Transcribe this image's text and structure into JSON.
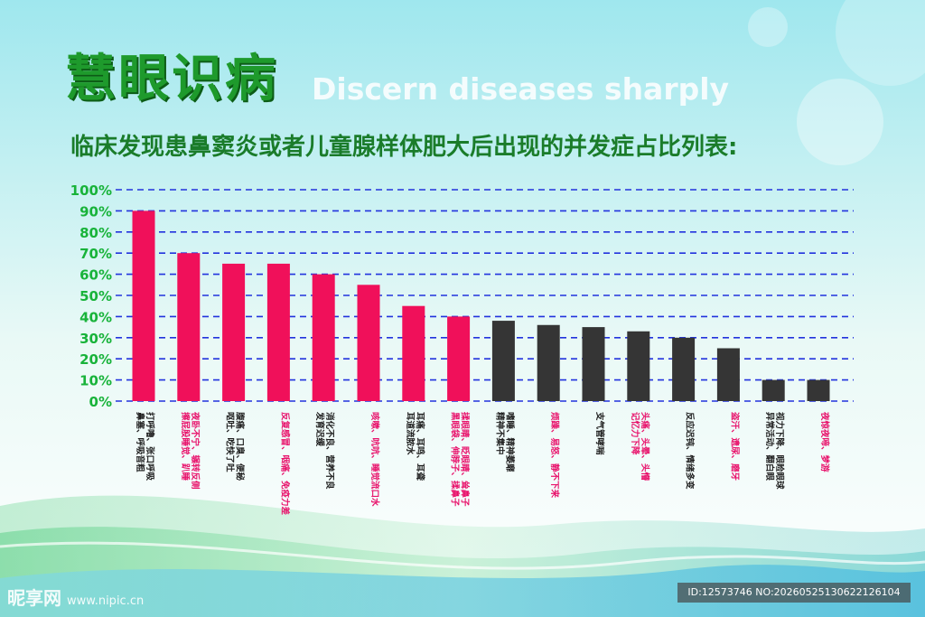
{
  "header": {
    "title_cn": "慧眼识病",
    "title_en": "Discern diseases sharply",
    "subtitle": "临床发现患鼻窦炎或者儿童腺样体肥大后出现的并发症占比列表:"
  },
  "colors": {
    "title": "#1e9a2c",
    "subtitle": "#1a7c2a",
    "axis_label": "#18b33a",
    "grid": "#2233dd",
    "bar_pink": "#f0105a",
    "bar_dark": "#353535",
    "label_pink": "#e8106a",
    "label_dark": "#1e1e1e"
  },
  "chart_data": {
    "type": "bar",
    "title": "",
    "xlabel": "",
    "ylabel": "",
    "ylim": [
      0,
      100
    ],
    "yticks": [
      0,
      10,
      20,
      30,
      40,
      50,
      60,
      70,
      80,
      90,
      100
    ],
    "ytick_labels": [
      "0%",
      "10%",
      "20%",
      "30%",
      "40%",
      "50%",
      "60%",
      "70%",
      "80%",
      "90%",
      "100%"
    ],
    "grid": true,
    "categories": [
      [
        "打呼噜、张口呼吸",
        "鼻塞、呼吸音粗"
      ],
      [
        "夜卧不宁、辗转反侧",
        "擦屁股睡觉、趴睡"
      ],
      [
        "腹痛、口臭、便秘",
        "呕吐、吃快了吐"
      ],
      [
        "反复感冒、咽痛、免疫力差"
      ],
      [
        "消化不良、营养不良",
        "发育迟缓"
      ],
      [
        "咳嗽、吭吭、睡觉流口水"
      ],
      [
        "耳痛、耳鸣、耳聋",
        "耳道流脓水"
      ],
      [
        "揉眼睛、眨眼睛、耸鼻子",
        "黑眼袋、伸脖子、揉鼻子"
      ],
      [
        "嗜睡、精神萎靡",
        "精神不集中"
      ],
      [
        "烦躁、易怒、静不下来"
      ],
      [
        "支气管哮喘"
      ],
      [
        "头痛、头晕、头懵",
        "记忆力下降"
      ],
      [
        "反应迟钝、情绪多变"
      ],
      [
        "盗汗、遗尿、磨牙"
      ],
      [
        "视力下降、眼睑眼球",
        "异常活动、翻白眼"
      ],
      [
        "夜惊夜啼、梦游"
      ]
    ],
    "values": [
      90,
      70,
      65,
      65,
      60,
      55,
      45,
      40,
      38,
      36,
      35,
      33,
      30,
      25,
      10,
      10
    ],
    "bar_groups": [
      "pink",
      "pink",
      "pink",
      "pink",
      "pink",
      "pink",
      "pink",
      "pink",
      "dark",
      "dark",
      "dark",
      "dark",
      "dark",
      "dark",
      "dark",
      "dark"
    ],
    "label_groups": [
      "dark",
      "pink",
      "dark",
      "pink",
      "dark",
      "pink",
      "dark",
      "pink",
      "dark",
      "pink",
      "dark",
      "pink",
      "dark",
      "pink",
      "dark",
      "pink"
    ]
  },
  "footer": {
    "watermark": "昵享网",
    "watermark_url": "www.nipic.cn",
    "image_id": "ID:12573746 NO:20260525130622126104"
  }
}
